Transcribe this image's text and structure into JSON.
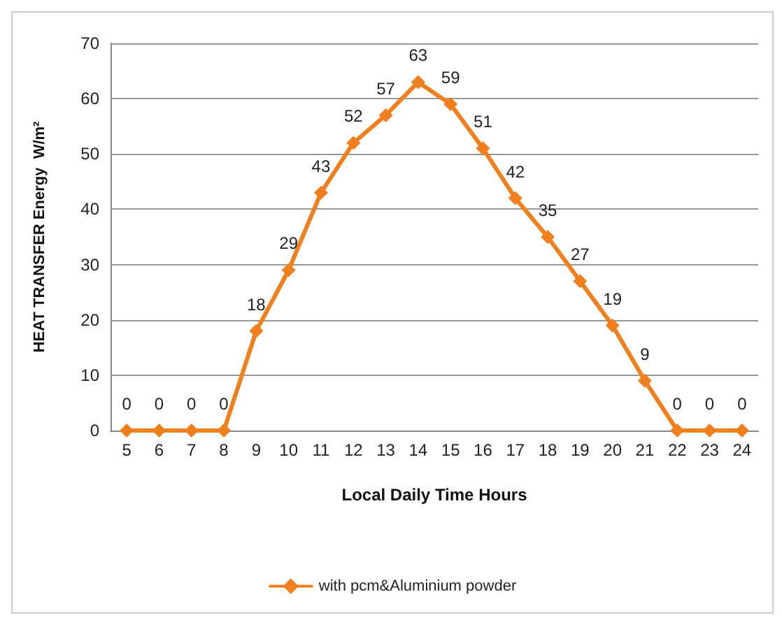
{
  "chart_data": {
    "type": "line",
    "xlabel": "Local Daily Time Hours",
    "ylabel": "HEAT TRANSFER Energy  W/m²",
    "categories": [
      "5",
      "6",
      "7",
      "8",
      "9",
      "10",
      "11",
      "12",
      "13",
      "14",
      "15",
      "16",
      "17",
      "18",
      "19",
      "20",
      "21",
      "22",
      "23",
      "24"
    ],
    "series": [
      {
        "name": "with pcm&Aluminium powder",
        "color": "#f07f1e",
        "values": [
          0,
          0,
          0,
          0,
          18,
          29,
          43,
          52,
          57,
          63,
          59,
          51,
          42,
          35,
          27,
          19,
          9,
          0,
          0,
          0
        ]
      }
    ],
    "ylim": [
      0,
      70
    ],
    "yticks": [
      0,
      10,
      20,
      30,
      40,
      50,
      60,
      70
    ],
    "grid": "y",
    "legend": "bottom",
    "marker": "diamond",
    "line_style": "solid",
    "data_labels": true
  }
}
